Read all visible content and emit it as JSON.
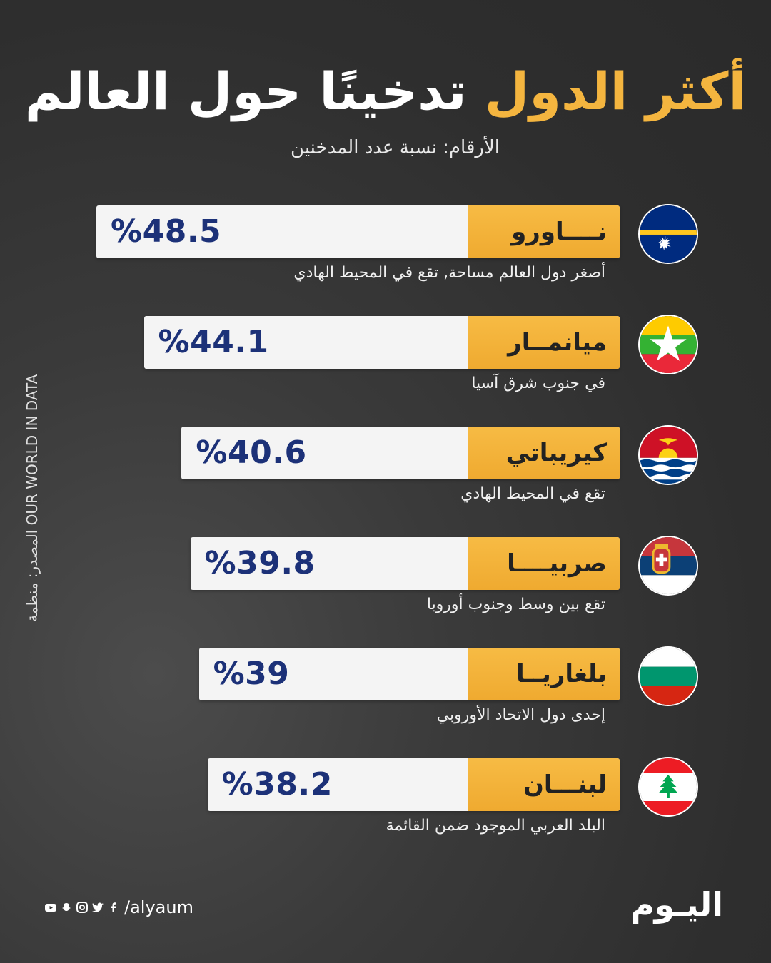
{
  "header": {
    "title_part1": "أكثر الدول",
    "title_part2": "تدخينًا حول العالم",
    "subtitle": "الأرقام: نسبة عدد المدخنين"
  },
  "source": "المصدر: منظمة OUR WORLD IN DATA",
  "footer": {
    "handle": "/alyaum",
    "logo": "اليـوم"
  },
  "colors": {
    "accent": "#f4b53f",
    "value": "#1c3178",
    "background": "#333333"
  },
  "chart_data": {
    "type": "bar",
    "orientation": "horizontal",
    "title": "أكثر الدول تدخينًا حول العالم",
    "subtitle": "الأرقام: نسبة عدد المدخنين",
    "unit": "%",
    "categories": [
      "نــــاورو",
      "ميانمــار",
      "كيريباتي",
      "صربيــــا",
      "بلغاريــا",
      "لبنـــان"
    ],
    "values": [
      48.5,
      44.1,
      40.6,
      39.8,
      39,
      38.2
    ],
    "value_labels": [
      "%48.5",
      "%44.1",
      "%40.6",
      "%39.8",
      "%39",
      "%38.2"
    ],
    "notes": [
      "أصغر دول العالم مساحة, تقع في المحيط الهادي",
      "في جنوب شرق آسيا",
      "تقع في المحيط الهادي",
      "تقع بين وسط وجنوب أوروبا",
      "إحدى دول الاتحاد الأوروبي",
      "البلد العربي الموجود ضمن القائمة"
    ],
    "flags": [
      "nauru-flag-icon",
      "myanmar-flag-icon",
      "kiribati-flag-icon",
      "serbia-flag-icon",
      "bulgaria-flag-icon",
      "lebanon-flag-icon"
    ]
  }
}
